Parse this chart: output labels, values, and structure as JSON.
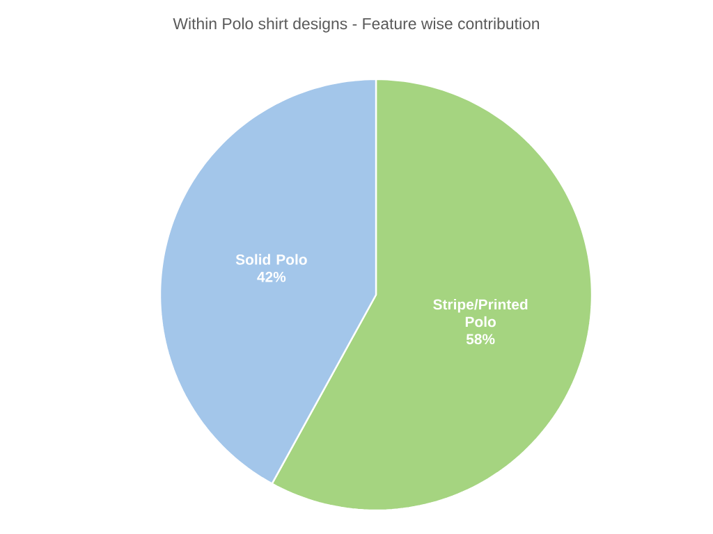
{
  "chart_data": {
    "type": "pie",
    "title": "Within Polo shirt designs - Feature wise contribution",
    "categories": [
      "Stripe/Printed Polo",
      "Solid Polo"
    ],
    "values": [
      58,
      42
    ],
    "colors": [
      "#a5d480",
      "#a3c6ea"
    ],
    "value_labels": [
      "58%",
      "42%"
    ],
    "data_labels": true
  }
}
